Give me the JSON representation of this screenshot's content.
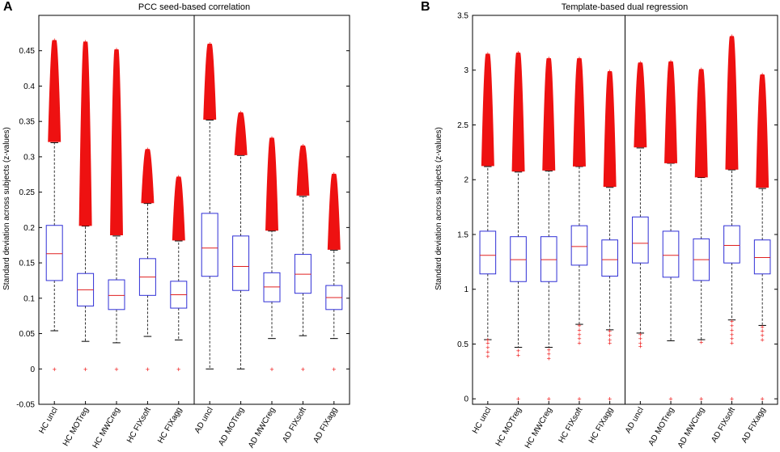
{
  "panels": [
    {
      "letter": "A"
    },
    {
      "letter": "B"
    }
  ],
  "chart_data": [
    {
      "type": "box",
      "title": "PCC seed-based correlation",
      "ylabel": "Standard deviation across subjects (z-values)",
      "ylim": [
        -0.05,
        0.5
      ],
      "yticks": [
        -0.05,
        0,
        0.05,
        0.1,
        0.15,
        0.2,
        0.25,
        0.3,
        0.35,
        0.4,
        0.45
      ],
      "ytick_labels": [
        "-0.05",
        "0",
        "0.05",
        "0.1",
        "0.15",
        "0.2",
        "0.25",
        "0.3",
        "0.35",
        "0.4",
        "0.45"
      ],
      "divider_after": 5,
      "categories": [
        "HC uncl",
        "HC MOTreg",
        "HC MWCreg",
        "HC FIXsoft",
        "HC FIXagg",
        "AD uncl",
        "AD MOTreg",
        "AD MWCreg",
        "AD FIXsoft",
        "AD FIXagg"
      ],
      "boxes": [
        {
          "whisker_low": 0.054,
          "q1": 0.125,
          "median": 0.163,
          "q3": 0.203,
          "whisker_high": 0.32,
          "outlier_high_from": 0.32,
          "outlier_high_to": 0.465,
          "outlier_low": [
            0
          ]
        },
        {
          "whisker_low": 0.039,
          "q1": 0.089,
          "median": 0.112,
          "q3": 0.135,
          "whisker_high": 0.202,
          "outlier_high_from": 0.202,
          "outlier_high_to": 0.463,
          "outlier_low": [
            0
          ]
        },
        {
          "whisker_low": 0.037,
          "q1": 0.084,
          "median": 0.104,
          "q3": 0.126,
          "whisker_high": 0.188,
          "outlier_high_from": 0.188,
          "outlier_high_to": 0.452,
          "outlier_low": [
            0
          ]
        },
        {
          "whisker_low": 0.046,
          "q1": 0.104,
          "median": 0.13,
          "q3": 0.156,
          "whisker_high": 0.234,
          "outlier_high_from": 0.234,
          "outlier_high_to": 0.311,
          "outlier_low": [
            0
          ]
        },
        {
          "whisker_low": 0.041,
          "q1": 0.086,
          "median": 0.105,
          "q3": 0.124,
          "whisker_high": 0.181,
          "outlier_high_from": 0.181,
          "outlier_high_to": 0.272,
          "outlier_low": [
            0
          ]
        },
        {
          "whisker_low": 0.0,
          "q1": 0.131,
          "median": 0.171,
          "q3": 0.22,
          "whisker_high": 0.352,
          "outlier_high_from": 0.352,
          "outlier_high_to": 0.46,
          "outlier_low": []
        },
        {
          "whisker_low": 0.0,
          "q1": 0.111,
          "median": 0.145,
          "q3": 0.188,
          "whisker_high": 0.302,
          "outlier_high_from": 0.302,
          "outlier_high_to": 0.363,
          "outlier_low": []
        },
        {
          "whisker_low": 0.043,
          "q1": 0.095,
          "median": 0.116,
          "q3": 0.136,
          "whisker_high": 0.195,
          "outlier_high_from": 0.195,
          "outlier_high_to": 0.327,
          "outlier_low": [
            0
          ]
        },
        {
          "whisker_low": 0.047,
          "q1": 0.107,
          "median": 0.134,
          "q3": 0.162,
          "whisker_high": 0.244,
          "outlier_high_from": 0.244,
          "outlier_high_to": 0.316,
          "outlier_low": [
            0
          ]
        },
        {
          "whisker_low": 0.043,
          "q1": 0.084,
          "median": 0.101,
          "q3": 0.118,
          "whisker_high": 0.168,
          "outlier_high_from": 0.168,
          "outlier_high_to": 0.276,
          "outlier_low": [
            0
          ]
        }
      ]
    },
    {
      "type": "box",
      "title": "Template-based dual regression",
      "ylabel": "Standard deviation across subjects (z-values)",
      "ylim": [
        -0.05,
        3.5
      ],
      "yticks": [
        0,
        0.5,
        1,
        1.5,
        2,
        2.5,
        3,
        3.5
      ],
      "ytick_labels": [
        "0",
        "0.5",
        "1",
        "1.5",
        "2",
        "2.5",
        "3",
        "3.5"
      ],
      "divider_after": 5,
      "categories": [
        "HC uncl",
        "HC MOTreg",
        "HC MWCreg",
        "HC FIXsoft",
        "HC FIXagg",
        "AD uncl",
        "AD MOTreg",
        "AD MWCreg",
        "AD FIXsoft",
        "AD FIXagg"
      ],
      "boxes": [
        {
          "whisker_low": 0.54,
          "q1": 1.14,
          "median": 1.31,
          "q3": 1.53,
          "whisker_high": 2.12,
          "outlier_high_from": 2.12,
          "outlier_high_to": 3.15,
          "outlier_low": [
            0.54,
            0.51,
            0.47,
            0.43,
            0.39
          ]
        },
        {
          "whisker_low": 0.47,
          "q1": 1.07,
          "median": 1.27,
          "q3": 1.48,
          "whisker_high": 2.07,
          "outlier_high_from": 2.07,
          "outlier_high_to": 3.16,
          "outlier_low": [
            0.44,
            0.4,
            0
          ]
        },
        {
          "whisker_low": 0.47,
          "q1": 1.07,
          "median": 1.27,
          "q3": 1.48,
          "whisker_high": 2.08,
          "outlier_high_from": 2.08,
          "outlier_high_to": 3.11,
          "outlier_low": [
            0.45,
            0.41,
            0.37,
            0
          ]
        },
        {
          "whisker_low": 0.68,
          "q1": 1.22,
          "median": 1.39,
          "q3": 1.58,
          "whisker_high": 2.12,
          "outlier_high_from": 2.12,
          "outlier_high_to": 3.11,
          "outlier_low": [
            0.67,
            0.63,
            0.59,
            0.55,
            0.51,
            0
          ]
        },
        {
          "whisker_low": 0.63,
          "q1": 1.12,
          "median": 1.27,
          "q3": 1.45,
          "whisker_high": 1.93,
          "outlier_high_from": 1.93,
          "outlier_high_to": 2.99,
          "outlier_low": [
            0.62,
            0.58,
            0.54,
            0.51,
            0
          ]
        },
        {
          "whisker_low": 0.6,
          "q1": 1.24,
          "median": 1.42,
          "q3": 1.66,
          "whisker_high": 2.29,
          "outlier_high_from": 2.29,
          "outlier_high_to": 3.07,
          "outlier_low": [
            0.59,
            0.55,
            0.51,
            0.48
          ]
        },
        {
          "whisker_low": 0.53,
          "q1": 1.11,
          "median": 1.31,
          "q3": 1.53,
          "whisker_high": 2.15,
          "outlier_high_from": 2.15,
          "outlier_high_to": 3.08,
          "outlier_low": [
            0
          ]
        },
        {
          "whisker_low": 0.54,
          "q1": 1.08,
          "median": 1.27,
          "q3": 1.46,
          "whisker_high": 2.02,
          "outlier_high_from": 2.02,
          "outlier_high_to": 3.01,
          "outlier_low": [
            0.52,
            0
          ]
        },
        {
          "whisker_low": 0.72,
          "q1": 1.24,
          "median": 1.4,
          "q3": 1.58,
          "whisker_high": 2.09,
          "outlier_high_from": 2.09,
          "outlier_high_to": 3.31,
          "outlier_low": [
            0.71,
            0.67,
            0.63,
            0.59,
            0.55,
            0.51,
            0
          ]
        },
        {
          "whisker_low": 0.67,
          "q1": 1.14,
          "median": 1.29,
          "q3": 1.45,
          "whisker_high": 1.92,
          "outlier_high_from": 1.92,
          "outlier_high_to": 2.96,
          "outlier_low": [
            0.66,
            0.62,
            0.58,
            0.54,
            0
          ]
        }
      ]
    }
  ]
}
